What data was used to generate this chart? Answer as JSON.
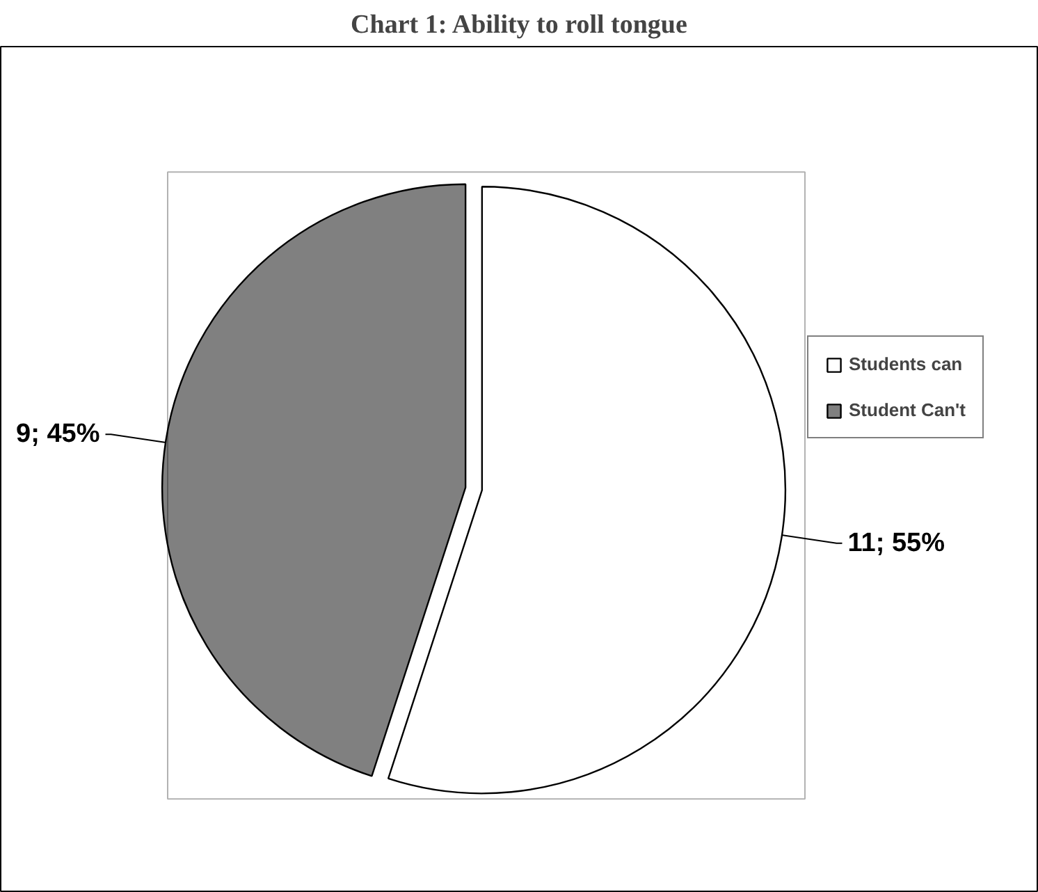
{
  "chart_data": {
    "type": "pie",
    "title": "Chart 1: Ability to roll tongue",
    "categories": [
      "Students can",
      "Student Can't"
    ],
    "values": [
      11,
      9
    ],
    "colors": [
      "#ffffff",
      "#808080"
    ],
    "value_labels": [
      "11; 55%",
      "9; 45%"
    ],
    "legend": "right"
  }
}
